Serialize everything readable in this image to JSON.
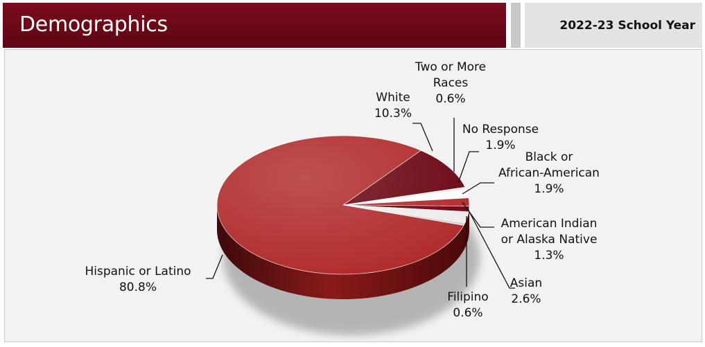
{
  "header": {
    "title": "Demographics",
    "year": "2022-23 School Year"
  },
  "colors": {
    "brand": "#6b0a18",
    "panel_bg": "#f2f2f2",
    "year_bg": "#e3e3e3"
  },
  "chart_data": {
    "type": "pie",
    "title": "",
    "style": "3d",
    "legend": "none",
    "slices": [
      {
        "id": "white",
        "lines": [
          "White",
          "10.3%"
        ],
        "value": 10.3,
        "color": "#6b0612"
      },
      {
        "id": "two-or-more",
        "lines": [
          "Two or More",
          "Races",
          "0.6%"
        ],
        "value": 0.6,
        "color": "#efefef"
      },
      {
        "id": "no-response",
        "lines": [
          "No Response",
          "1.9%"
        ],
        "value": 1.9,
        "color": "#ffffff"
      },
      {
        "id": "black",
        "lines": [
          "Black or",
          "African-American",
          "1.9%"
        ],
        "value": 1.9,
        "color": "#b22a2a"
      },
      {
        "id": "american-indian",
        "lines": [
          "American Indian",
          "or Alaska Native",
          "1.3%"
        ],
        "value": 1.3,
        "color": "#6b0612"
      },
      {
        "id": "asian",
        "lines": [
          "Asian",
          "2.6%"
        ],
        "value": 2.6,
        "color": "#ececec"
      },
      {
        "id": "filipino",
        "lines": [
          "Filipino",
          "0.6%"
        ],
        "value": 0.6,
        "color": "#d4d4d4"
      },
      {
        "id": "hispanic",
        "lines": [
          "Hispanic or Latino",
          "80.8%"
        ],
        "value": 80.8,
        "color": "#b02a2a"
      }
    ]
  }
}
